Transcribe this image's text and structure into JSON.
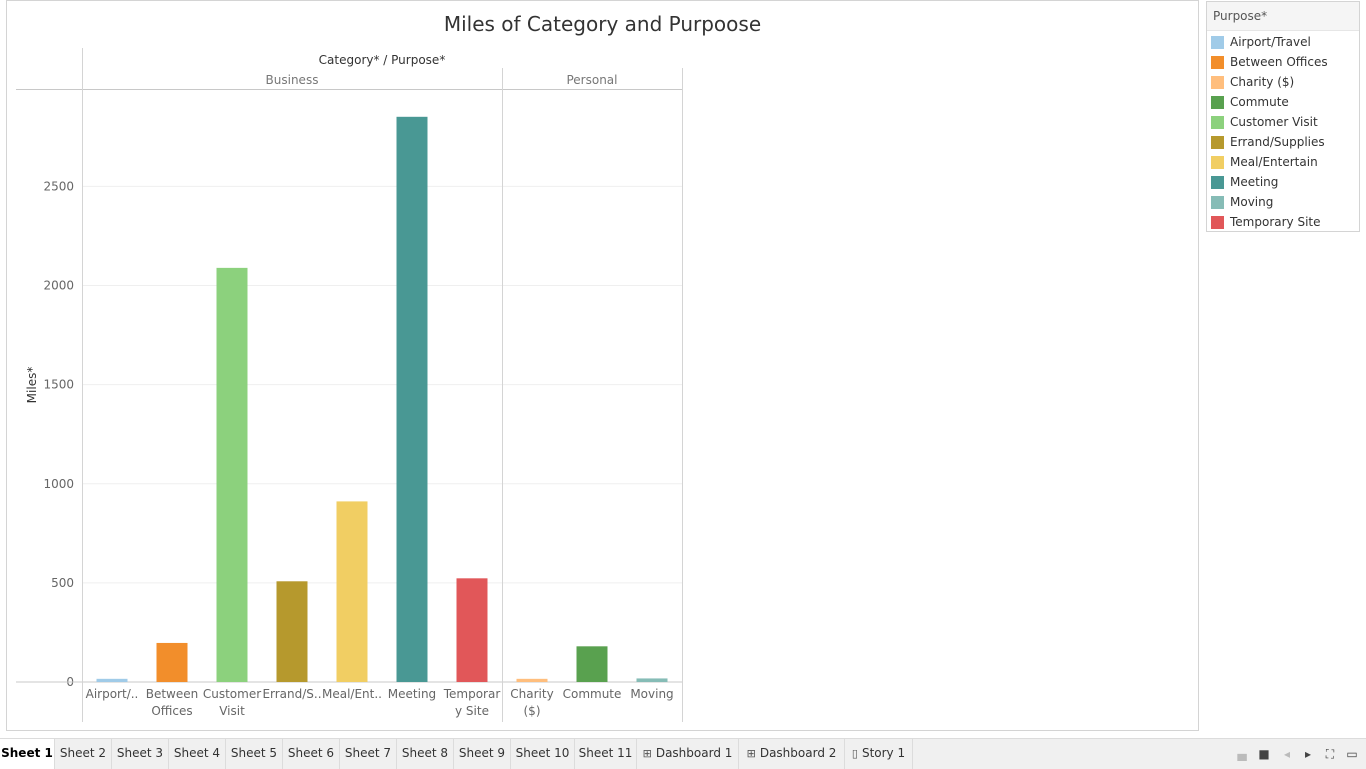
{
  "chart_data": {
    "type": "bar",
    "title": "Miles of Category and Purpoose",
    "header_label": "Category* / Purpose*",
    "ylabel": "Miles*",
    "ylim": [
      0,
      2850
    ],
    "yticks": [
      0,
      500,
      1000,
      1500,
      2000,
      2500
    ],
    "grid": true,
    "legend_position": "top-right",
    "groups": [
      {
        "name": "Business",
        "bars": [
          {
            "label_lines": [
              "Airport/.."
            ],
            "purpose": "Airport/Travel",
            "value": 16
          },
          {
            "label_lines": [
              "Between",
              "Offices"
            ],
            "purpose": "Between Offices",
            "value": 197
          },
          {
            "label_lines": [
              "Customer",
              "Visit"
            ],
            "purpose": "Customer Visit",
            "value": 2089
          },
          {
            "label_lines": [
              "Errand/S.."
            ],
            "purpose": "Errand/Supplies",
            "value": 508
          },
          {
            "label_lines": [
              "Meal/Ent.."
            ],
            "purpose": "Meal/Entertain",
            "value": 911
          },
          {
            "label_lines": [
              "Meeting"
            ],
            "purpose": "Meeting",
            "value": 2851
          },
          {
            "label_lines": [
              "Temporar",
              "y Site"
            ],
            "purpose": "Temporary Site",
            "value": 523
          }
        ]
      },
      {
        "name": "Personal",
        "bars": [
          {
            "label_lines": [
              "Charity",
              "($)"
            ],
            "purpose": "Charity ($)",
            "value": 16
          },
          {
            "label_lines": [
              "Commute"
            ],
            "purpose": "Commute",
            "value": 180
          },
          {
            "label_lines": [
              "Moving"
            ],
            "purpose": "Moving",
            "value": 18
          }
        ]
      }
    ]
  },
  "legend": {
    "title": "Purpose*",
    "items": [
      {
        "label": "Airport/Travel",
        "color": "#a0cbe8"
      },
      {
        "label": "Between Offices",
        "color": "#f28e2b"
      },
      {
        "label": "Charity ($)",
        "color": "#ffbe7d"
      },
      {
        "label": "Commute",
        "color": "#59a14f"
      },
      {
        "label": "Customer Visit",
        "color": "#8cd17d"
      },
      {
        "label": "Errand/Supplies",
        "color": "#b6992d"
      },
      {
        "label": "Meal/Entertain",
        "color": "#f1ce63"
      },
      {
        "label": "Meeting",
        "color": "#499894"
      },
      {
        "label": "Moving",
        "color": "#86bcb6"
      },
      {
        "label": "Temporary Site",
        "color": "#e15759"
      }
    ]
  },
  "tabs": [
    {
      "label": "Sheet 1",
      "active": true,
      "icon": ""
    },
    {
      "label": "Sheet 2",
      "active": false,
      "icon": ""
    },
    {
      "label": "Sheet 3",
      "active": false,
      "icon": ""
    },
    {
      "label": "Sheet 4",
      "active": false,
      "icon": ""
    },
    {
      "label": "Sheet 5",
      "active": false,
      "icon": ""
    },
    {
      "label": "Sheet 6",
      "active": false,
      "icon": ""
    },
    {
      "label": "Sheet 7",
      "active": false,
      "icon": ""
    },
    {
      "label": "Sheet 8",
      "active": false,
      "icon": ""
    },
    {
      "label": "Sheet 9",
      "active": false,
      "icon": ""
    },
    {
      "label": "Sheet 10",
      "active": false,
      "icon": ""
    },
    {
      "label": "Sheet 11",
      "active": false,
      "icon": ""
    },
    {
      "label": "Dashboard 1",
      "active": false,
      "icon": "dashboard-icon"
    },
    {
      "label": "Dashboard 2",
      "active": false,
      "icon": "dashboard-icon"
    },
    {
      "label": "Story 1",
      "active": false,
      "icon": "story-icon"
    }
  ],
  "controls": [
    {
      "name": "show-filmstrip-icon"
    },
    {
      "name": "show-tabs-icon"
    },
    {
      "name": "prev-sheet-icon"
    },
    {
      "name": "next-sheet-icon"
    },
    {
      "name": "fit-window-icon"
    },
    {
      "name": "presentation-mode-icon"
    }
  ]
}
